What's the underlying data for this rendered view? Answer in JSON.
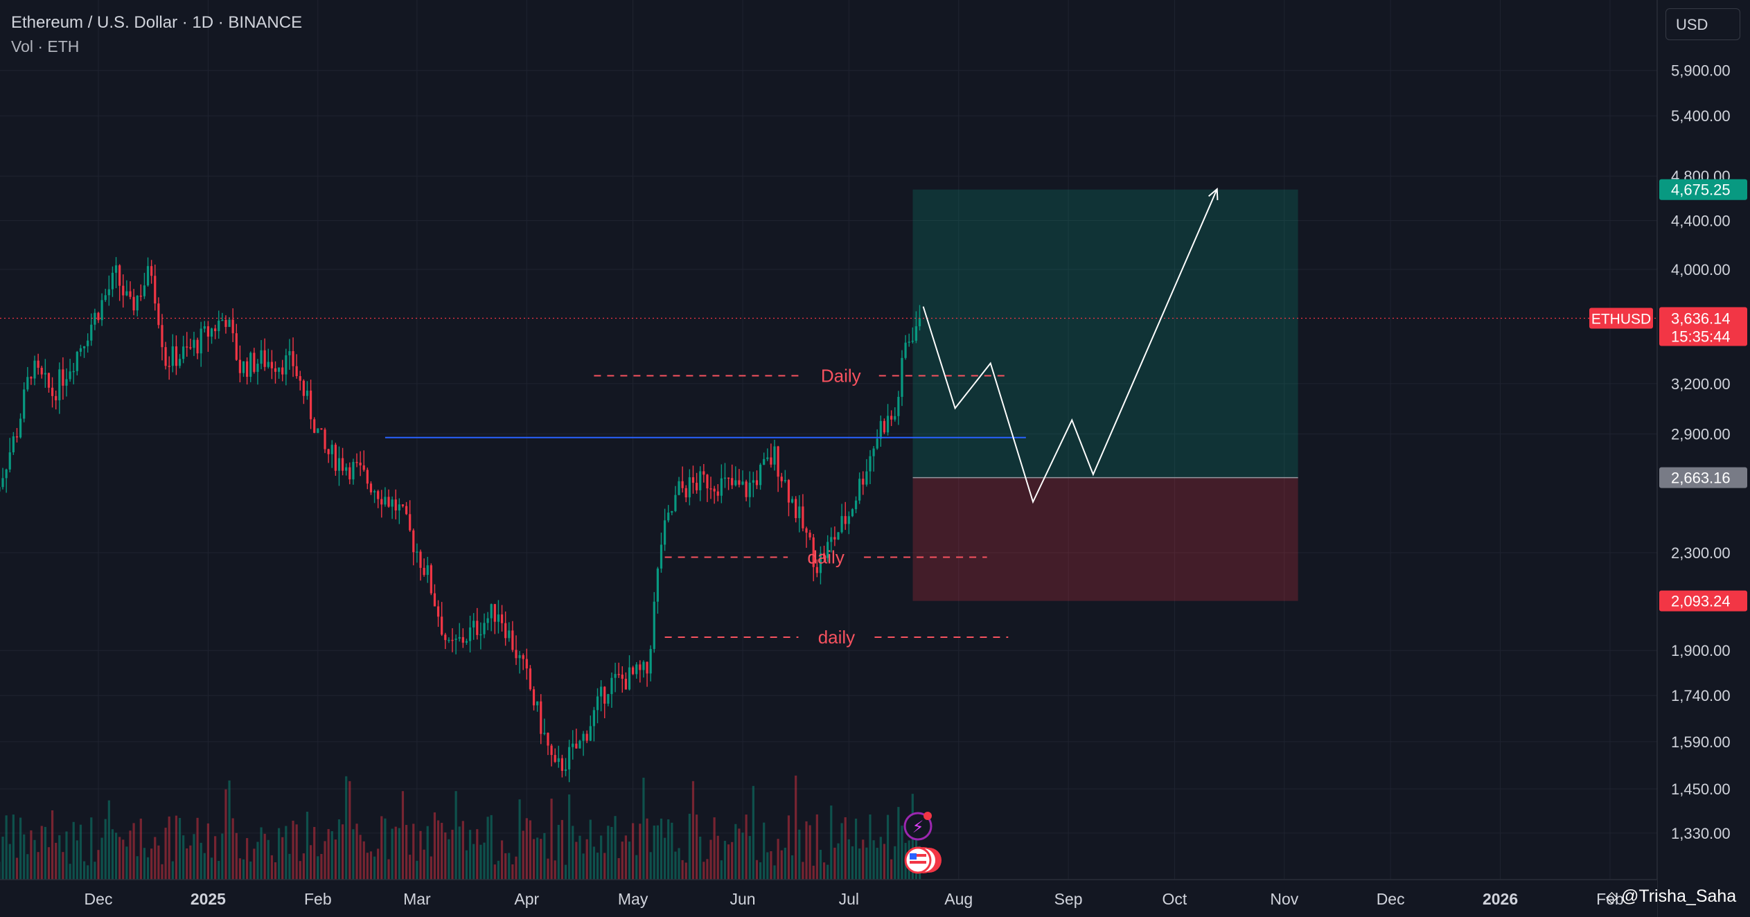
{
  "header": {
    "symbol_title": "Ethereum / U.S. Dollar · 1D · BINANCE",
    "volume_label": "Vol · ETH"
  },
  "toolbar": {
    "currency": "USD"
  },
  "attribution": {
    "author": "@Trisha_Saha",
    "logo_icon": "tradingview-logo-icon"
  },
  "chart_data": {
    "type": "candlestick",
    "symbol": "ETHUSD",
    "interval": "1D",
    "exchange": "BINANCE",
    "y_scale": "log",
    "grid": true,
    "ylim": [
      1200,
      6300
    ],
    "price_ticks": [
      "5,900.00",
      "5,400.00",
      "4,800.00",
      "4,400.00",
      "4,000.00",
      "3,200.00",
      "2,900.00",
      "2,300.00",
      "1,900.00",
      "1,740.00",
      "1,590.00",
      "1,450.00",
      "1,330.00"
    ],
    "price_tick_values": [
      5900,
      5400,
      4800,
      4400,
      4000,
      3200,
      2900,
      2300,
      1900,
      1740,
      1590,
      1450,
      1330
    ],
    "time_labels": [
      {
        "label": "Dec",
        "date": "2024-12-01"
      },
      {
        "label": "2025",
        "date": "2025-01-01",
        "bold": true
      },
      {
        "label": "Feb",
        "date": "2025-02-01"
      },
      {
        "label": "Mar",
        "date": "2025-03-01"
      },
      {
        "label": "Apr",
        "date": "2025-04-01"
      },
      {
        "label": "May",
        "date": "2025-05-01"
      },
      {
        "label": "Jun",
        "date": "2025-06-01"
      },
      {
        "label": "Jul",
        "date": "2025-07-01"
      },
      {
        "label": "Aug",
        "date": "2025-08-01"
      },
      {
        "label": "Sep",
        "date": "2025-09-01"
      },
      {
        "label": "Oct",
        "date": "2025-10-01"
      },
      {
        "label": "Nov",
        "date": "2025-11-01"
      },
      {
        "label": "Dec",
        "date": "2025-12-01"
      },
      {
        "label": "2026",
        "date": "2026-01-01",
        "bold": true
      },
      {
        "label": "Feb",
        "date": "2026-02-01"
      }
    ],
    "closes": [
      {
        "date": "2024-11-01",
        "close": 2540
      },
      {
        "date": "2024-11-08",
        "close": 2920
      },
      {
        "date": "2024-11-12",
        "close": 3300
      },
      {
        "date": "2024-11-18",
        "close": 3140
      },
      {
        "date": "2024-11-24",
        "close": 3360
      },
      {
        "date": "2024-12-01",
        "close": 3700
      },
      {
        "date": "2024-12-06",
        "close": 3950
      },
      {
        "date": "2024-12-10",
        "close": 3700
      },
      {
        "date": "2024-12-16",
        "close": 4000
      },
      {
        "date": "2024-12-20",
        "close": 3350
      },
      {
        "date": "2024-12-26",
        "close": 3400
      },
      {
        "date": "2025-01-06",
        "close": 3650
      },
      {
        "date": "2025-01-10",
        "close": 3300
      },
      {
        "date": "2025-01-16",
        "close": 3350
      },
      {
        "date": "2025-01-25",
        "close": 3330
      },
      {
        "date": "2025-02-03",
        "close": 2800
      },
      {
        "date": "2025-02-12",
        "close": 2700
      },
      {
        "date": "2025-02-24",
        "close": 2500
      },
      {
        "date": "2025-03-04",
        "close": 2200
      },
      {
        "date": "2025-03-10",
        "close": 1900
      },
      {
        "date": "2025-03-24",
        "close": 2060
      },
      {
        "date": "2025-04-01",
        "close": 1800
      },
      {
        "date": "2025-04-09",
        "close": 1500
      },
      {
        "date": "2025-04-16",
        "close": 1580
      },
      {
        "date": "2025-04-24",
        "close": 1780
      },
      {
        "date": "2025-05-05",
        "close": 1820
      },
      {
        "date": "2025-05-09",
        "close": 2350
      },
      {
        "date": "2025-05-14",
        "close": 2600
      },
      {
        "date": "2025-05-22",
        "close": 2650
      },
      {
        "date": "2025-06-02",
        "close": 2600
      },
      {
        "date": "2025-06-10",
        "close": 2780
      },
      {
        "date": "2025-06-22",
        "close": 2250
      },
      {
        "date": "2025-07-01",
        "close": 2480
      },
      {
        "date": "2025-07-10",
        "close": 2950
      },
      {
        "date": "2025-07-14",
        "close": 3000
      },
      {
        "date": "2025-07-17",
        "close": 3450
      },
      {
        "date": "2025-07-21",
        "close": 3636.14
      }
    ],
    "support_resistance": [
      {
        "label": "Daily",
        "price": 3250,
        "from": "2025-04-20",
        "to": "2025-08-14"
      },
      {
        "label": "daily",
        "price": 2280,
        "from": "2025-05-10",
        "to": "2025-08-09"
      },
      {
        "label": "daily",
        "price": 1950,
        "from": "2025-05-10",
        "to": "2025-08-15"
      }
    ],
    "trendline": {
      "price": 2880,
      "from": "2025-02-20",
      "to": "2025-08-20",
      "color": "#2962ff"
    },
    "position": {
      "type": "long",
      "entry": 2663.16,
      "target": 4675.25,
      "stop": 2093.24,
      "from": "2025-07-21",
      "to": "2025-10-30"
    },
    "projected_path": [
      {
        "date": "2025-07-22",
        "price": 3720
      },
      {
        "date": "2025-07-31",
        "price": 3050
      },
      {
        "date": "2025-08-10",
        "price": 3330
      },
      {
        "date": "2025-08-22",
        "price": 2540
      },
      {
        "date": "2025-09-02",
        "price": 2980
      },
      {
        "date": "2025-09-08",
        "price": 2680
      },
      {
        "date": "2025-10-13",
        "price": 4680
      }
    ],
    "current": {
      "ticker": "ETHUSD",
      "price": "3,636.14",
      "countdown": "15:35:44",
      "value": 3636.14
    },
    "price_tags": {
      "target": {
        "text": "4,675.25",
        "color": "#089981"
      },
      "entry": {
        "text": "2,663.16",
        "color": "#787b86"
      },
      "stop": {
        "text": "2,093.24",
        "color": "#f23645"
      }
    },
    "colors": {
      "up": "#089981",
      "down": "#f23645",
      "grid": "#1f2330",
      "background": "#131722"
    }
  }
}
